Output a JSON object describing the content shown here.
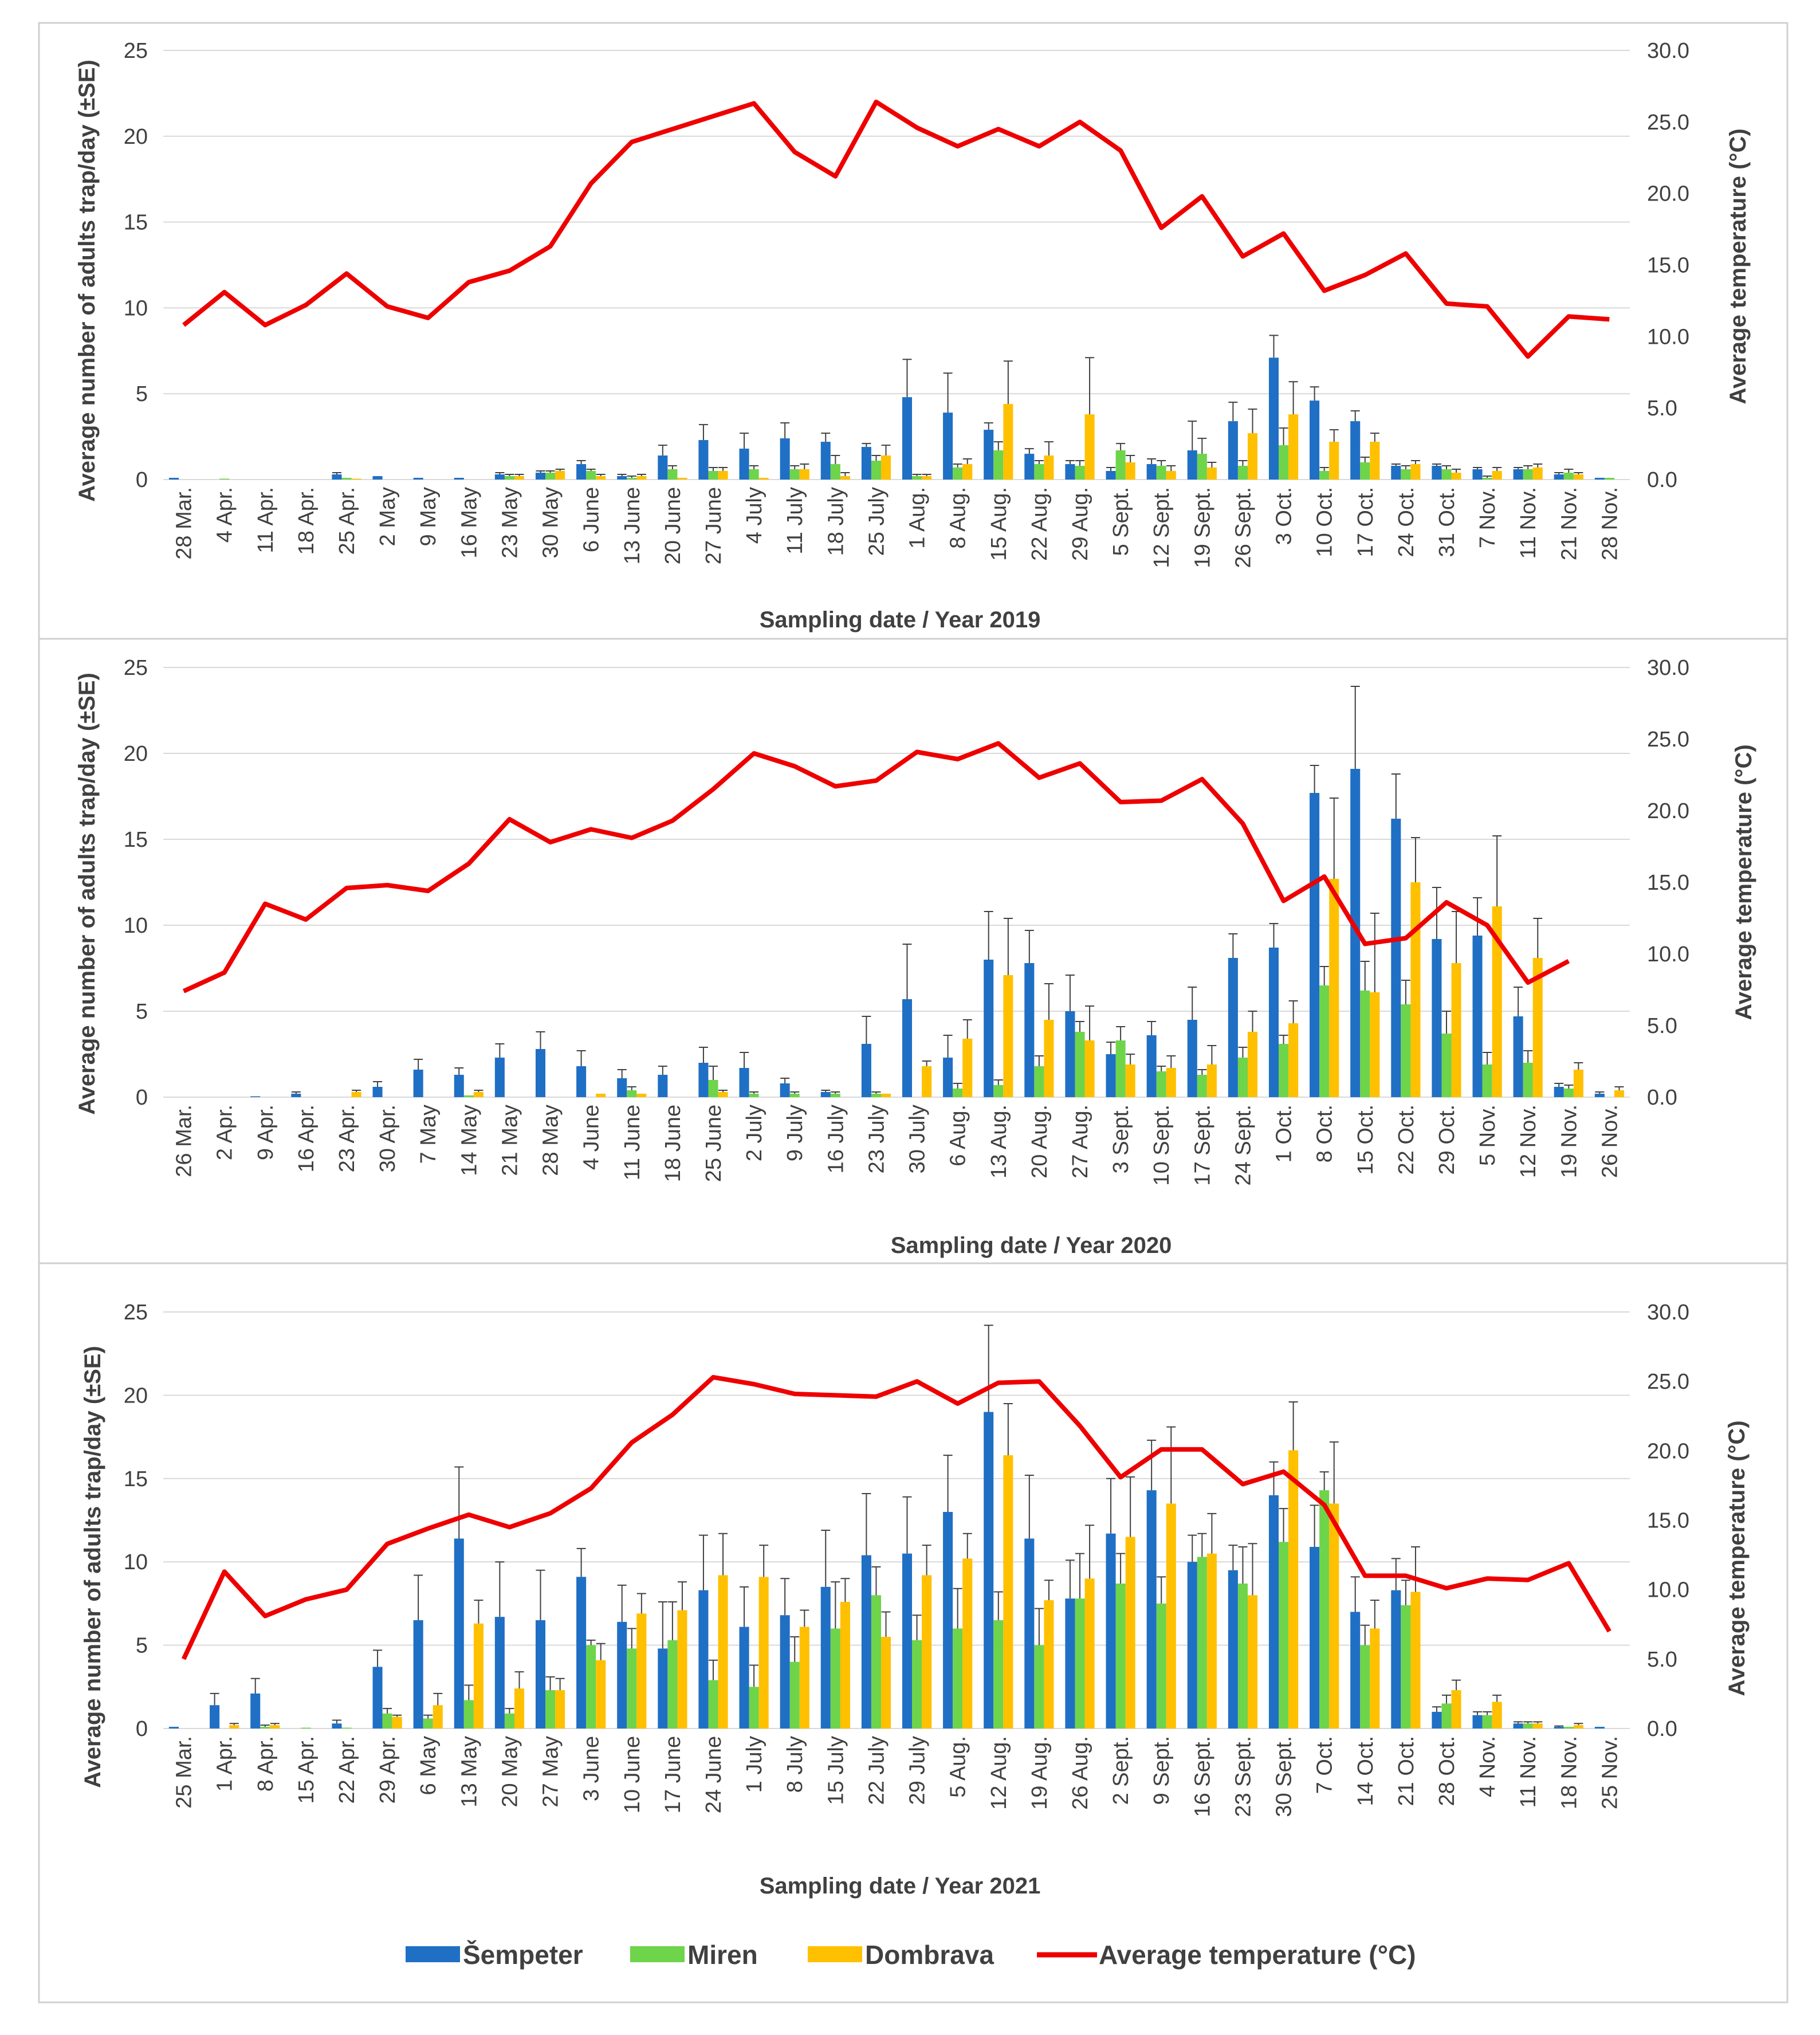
{
  "legend": {
    "items": [
      {
        "name": "Šempeter",
        "color": "#1f6fc5",
        "kind": "bar"
      },
      {
        "name": "Miren",
        "color": "#6ed44a",
        "kind": "bar"
      },
      {
        "name": "Dombrava",
        "color": "#ffc000",
        "kind": "bar"
      },
      {
        "name": "Average temperature (°C)",
        "color": "#ee0000",
        "kind": "line"
      }
    ]
  },
  "chart_data": [
    {
      "type": "bar",
      "title": "",
      "xlabel": "Sampling date / Year 2019",
      "ylabel": "Average number of adults  trap/day (±SE)",
      "y2label": "Average  temperature (°C)",
      "ylim": [
        0,
        25
      ],
      "y2lim": [
        0,
        30
      ],
      "yticks": [
        "0",
        "5",
        "10",
        "15",
        "20",
        "25"
      ],
      "y2ticks": [
        "0.0",
        "5.0",
        "10.0",
        "15.0",
        "20.0",
        "25.0",
        "30.0"
      ],
      "categories": [
        "28 Mar.",
        "4 Apr.",
        "11 Apr.",
        "18 Apr.",
        "25 Apr.",
        "2 May",
        "9 May",
        "16 May",
        "23 May",
        "30 May",
        "6 June",
        "13 June",
        "20 June",
        "27 June",
        "4 July",
        "11 July",
        "18 July",
        "25 July",
        "1 Aug.",
        "8 Aug.",
        "15 Aug.",
        "22 Aug.",
        "29 Aug.",
        "5 Sept.",
        "12 Sept.",
        "19 Sept.",
        "26 Sept.",
        "3 Oct.",
        "10 Oct.",
        "17 Oct.",
        "24 Oct.",
        "31 Oct.",
        "7 Nov.",
        "11 Nov.",
        "21 Nov.",
        "28 Nov."
      ],
      "series": [
        {
          "name": "Šempeter",
          "values": [
            0.1,
            0,
            0,
            0,
            0.3,
            0.2,
            0.1,
            0.1,
            0.3,
            0.4,
            0.9,
            0.2,
            1.4,
            2.3,
            1.8,
            2.4,
            2.2,
            1.9,
            4.8,
            3.9,
            2.9,
            1.5,
            0.9,
            0.5,
            0.9,
            1.7,
            3.4,
            7.1,
            4.6,
            3.4,
            0.8,
            0.8,
            0.6,
            0.6,
            0.3,
            0.1
          ]
        },
        {
          "name": "Miren",
          "values": [
            0,
            0.05,
            0,
            0,
            0.1,
            0,
            0,
            0,
            0.2,
            0.4,
            0.5,
            0.1,
            0.6,
            0.5,
            0.6,
            0.6,
            0.9,
            1.1,
            0.2,
            0.7,
            1.7,
            0.9,
            0.8,
            1.7,
            0.8,
            1.5,
            0.8,
            2.0,
            0.5,
            1.0,
            0.6,
            0.6,
            0.1,
            0.6,
            0.4,
            0.1
          ]
        },
        {
          "name": "Dombrava",
          "values": [
            0,
            0,
            0,
            0,
            0.05,
            0,
            0,
            0,
            0.2,
            0.5,
            0.2,
            0.2,
            0.1,
            0.5,
            0.1,
            0.6,
            0.2,
            1.4,
            0.2,
            0.9,
            4.4,
            1.4,
            3.8,
            1.0,
            0.5,
            0.7,
            2.7,
            3.8,
            2.2,
            2.2,
            0.9,
            0.4,
            0.5,
            0.7,
            0.3,
            0
          ]
        }
      ],
      "errors": [
        [
          0,
          0,
          0,
          0,
          0.1,
          0,
          0,
          0,
          0.1,
          0.1,
          0.2,
          0.1,
          0.6,
          0.9,
          0.9,
          0.9,
          0.5,
          0.2,
          2.2,
          2.3,
          0.4,
          0.3,
          0.2,
          0.2,
          0.3,
          1.7,
          1.1,
          1.3,
          0.8,
          0.6,
          0.1,
          0.1,
          0.1,
          0.1,
          0.1,
          0
        ],
        [
          0,
          0,
          0,
          0,
          0,
          0,
          0,
          0,
          0.1,
          0.1,
          0.1,
          0.1,
          0.2,
          0.2,
          0.2,
          0.2,
          0.5,
          0.3,
          0.1,
          0.2,
          0.5,
          0.2,
          0.3,
          0.4,
          0.3,
          0.9,
          0.3,
          1.0,
          0.2,
          0.3,
          0.2,
          0.2,
          0.1,
          0.2,
          0.2,
          0
        ],
        [
          0,
          0,
          0,
          0,
          0,
          0,
          0,
          0,
          0.1,
          0.1,
          0.1,
          0.1,
          0,
          0.2,
          0,
          0.3,
          0.2,
          0.6,
          0.1,
          0.3,
          2.5,
          0.8,
          3.3,
          0.4,
          0.3,
          0.3,
          1.4,
          1.9,
          0.7,
          0.5,
          0.2,
          0.2,
          0.2,
          0.2,
          0.1,
          0
        ]
      ],
      "temperature": [
        10.8,
        13.1,
        10.8,
        12.2,
        14.4,
        12.1,
        11.3,
        13.8,
        14.6,
        16.3,
        20.7,
        23.6,
        24.5,
        25.4,
        26.3,
        22.9,
        21.2,
        26.4,
        24.6,
        23.3,
        24.5,
        23.3,
        25.0,
        23.0,
        17.6,
        19.8,
        15.6,
        17.2,
        13.2,
        14.3,
        15.8,
        12.3,
        12.1,
        8.6,
        11.4,
        11.2
      ]
    },
    {
      "type": "bar",
      "title": "",
      "xlabel": "Sampling date / Year 2020",
      "ylabel": "Average number of adults  trap/day (±SE)",
      "y2label": "Average temperature (°C)",
      "ylim": [
        0,
        25
      ],
      "y2lim": [
        0,
        30
      ],
      "yticks": [
        "0",
        "5",
        "10",
        "15",
        "20",
        "25"
      ],
      "y2ticks": [
        "0.0",
        "5.0",
        "10.0",
        "15.0",
        "20.0",
        "25.0",
        "30.0"
      ],
      "categories": [
        "26 Mar.",
        "2 Apr.",
        "9 Apr.",
        "16 Apr.",
        "23 Apr.",
        "30 Apr.",
        "7 May",
        "14 May",
        "21 May",
        "28 May",
        "4 June",
        "11 June",
        "18 June",
        "25 June",
        "2 July",
        "9 July",
        "16 July",
        "23 July",
        "30 July",
        "6 Aug.",
        "13 Aug.",
        "20 Aug.",
        "27 Aug.",
        "3 Sept.",
        "10 Sept.",
        "17 Sept.",
        "24 Sept.",
        "1 Oct.",
        "8 Oct.",
        "15 Oct.",
        "22 Oct.",
        "29 Oct.",
        "5 Nov.",
        "12 Nov.",
        "19 Nov.",
        "26 Nov."
      ],
      "series": [
        {
          "name": "Šempeter",
          "values": [
            0,
            0,
            0.05,
            0.2,
            0,
            0.6,
            1.6,
            1.3,
            2.3,
            2.8,
            1.8,
            1.1,
            1.3,
            2.0,
            1.7,
            0.8,
            0.3,
            3.1,
            5.7,
            2.3,
            8.0,
            7.8,
            5.0,
            2.5,
            3.6,
            4.5,
            8.1,
            8.7,
            17.7,
            19.1,
            16.2,
            9.2,
            9.4,
            4.7,
            0.6,
            0.2
          ]
        },
        {
          "name": "Miren",
          "values": [
            0,
            0,
            0,
            0,
            0,
            0,
            0,
            0.1,
            0,
            0,
            0,
            0.4,
            0,
            1.0,
            0.2,
            0.2,
            0.2,
            0.2,
            0,
            0.5,
            0.7,
            1.8,
            3.8,
            3.3,
            1.5,
            1.3,
            2.3,
            3.1,
            6.5,
            6.2,
            5.4,
            3.7,
            1.9,
            2.0,
            0.5,
            0
          ]
        },
        {
          "name": "Dombrava",
          "values": [
            0,
            0,
            0,
            0,
            0.3,
            0,
            0,
            0.3,
            0,
            0,
            0.2,
            0.2,
            0,
            0.3,
            0,
            0,
            0,
            0.2,
            1.8,
            3.4,
            7.1,
            4.5,
            3.3,
            1.9,
            1.7,
            1.9,
            3.8,
            4.3,
            12.7,
            6.1,
            12.5,
            7.8,
            11.1,
            8.1,
            1.6,
            0.4
          ]
        }
      ],
      "errors": [
        [
          0,
          0,
          0,
          0.1,
          0,
          0.3,
          0.6,
          0.4,
          0.8,
          1.0,
          0.9,
          0.5,
          0.5,
          0.9,
          0.9,
          0.3,
          0.1,
          1.6,
          3.2,
          1.3,
          2.8,
          1.9,
          2.1,
          0.7,
          0.8,
          1.9,
          1.4,
          1.4,
          1.6,
          4.8,
          2.6,
          3.0,
          2.2,
          1.7,
          0.2,
          0.1
        ],
        [
          0,
          0,
          0,
          0,
          0,
          0,
          0,
          0,
          0,
          0,
          0,
          0.2,
          0,
          0.8,
          0.1,
          0.1,
          0.1,
          0.1,
          0,
          0.3,
          0.3,
          0.6,
          0.6,
          0.8,
          0.3,
          0.3,
          0.6,
          0.5,
          1.1,
          1.7,
          1.4,
          1.3,
          0.7,
          0.7,
          0.2,
          0
        ],
        [
          0,
          0,
          0,
          0,
          0.1,
          0,
          0,
          0.1,
          0,
          0,
          0,
          0,
          0,
          0.1,
          0,
          0,
          0,
          0,
          0.3,
          1.1,
          3.3,
          2.1,
          2.0,
          0.6,
          0.7,
          1.1,
          1.2,
          1.3,
          4.7,
          4.6,
          2.6,
          3.0,
          4.1,
          2.3,
          0.4,
          0.2
        ]
      ],
      "temperature": [
        7.4,
        8.7,
        13.5,
        12.4,
        14.6,
        14.8,
        14.4,
        16.3,
        19.4,
        17.8,
        18.7,
        18.1,
        19.3,
        21.5,
        24.0,
        23.1,
        21.7,
        22.1,
        24.1,
        23.6,
        24.7,
        22.3,
        23.3,
        20.6,
        20.7,
        22.2,
        19.1,
        13.7,
        15.4,
        10.7,
        11.1,
        13.6,
        12.0,
        8.0,
        9.5,
        null
      ]
    },
    {
      "type": "bar",
      "title": "",
      "xlabel": "Sampling date / Year 2021",
      "ylabel": "Average number of adults  trap/day (±SE)",
      "y2label": "Average temperature (°C)",
      "ylim": [
        0,
        25
      ],
      "y2lim": [
        0,
        30
      ],
      "yticks": [
        "0",
        "5",
        "10",
        "15",
        "20",
        "25"
      ],
      "y2ticks": [
        "0.0",
        "5.0",
        "10.0",
        "15.0",
        "20.0",
        "25.0",
        "30.0"
      ],
      "categories": [
        "25 Mar.",
        "1 Apr.",
        "8 Apr.",
        "15 Apr.",
        "22 Apr.",
        "29 Apr.",
        "6 May",
        "13 May",
        "20 May",
        "27 May",
        "3 June",
        "10 June",
        "17 June",
        "24 June",
        "1 July",
        "8 July",
        "15 July",
        "22 July",
        "29 July",
        "5 Aug.",
        "12 Aug.",
        "19 Aug.",
        "26 Aug.",
        "2 Sept.",
        "9 Sept.",
        "16 Sept.",
        "23 Sept.",
        "30 Sept.",
        "7 Oct.",
        "14 Oct.",
        "21 Oct.",
        "28 Oct.",
        "4 Nov.",
        "11 Nov.",
        "18 Nov.",
        "25 Nov."
      ],
      "series": [
        {
          "name": "Šempeter",
          "values": [
            0.1,
            1.4,
            2.1,
            0,
            0.3,
            3.7,
            6.5,
            11.4,
            6.7,
            6.5,
            9.1,
            6.4,
            4.8,
            8.3,
            6.1,
            6.8,
            8.5,
            10.4,
            10.5,
            13.0,
            19.0,
            11.4,
            7.8,
            11.7,
            14.3,
            10.0,
            9.5,
            14.0,
            10.9,
            7.0,
            8.3,
            1.0,
            0.8,
            0.3,
            0.1,
            0.1
          ]
        },
        {
          "name": "Miren",
          "values": [
            0,
            0,
            0.1,
            0.05,
            0.05,
            0.9,
            0.6,
            1.7,
            0.9,
            2.3,
            5.0,
            4.8,
            5.3,
            2.9,
            2.5,
            4.0,
            6.0,
            8.0,
            5.3,
            6.0,
            6.5,
            5.0,
            7.8,
            8.7,
            7.5,
            10.3,
            8.7,
            11.2,
            14.3,
            5.0,
            7.4,
            1.5,
            0.8,
            0.3,
            0.1,
            0
          ]
        },
        {
          "name": "Dombrava",
          "values": [
            0,
            0.2,
            0.2,
            0,
            0,
            0.7,
            1.4,
            6.3,
            2.4,
            2.3,
            4.1,
            6.9,
            7.1,
            9.2,
            9.1,
            6.1,
            7.6,
            5.5,
            9.2,
            10.2,
            16.4,
            7.7,
            9.0,
            11.5,
            13.5,
            10.5,
            8.0,
            16.7,
            13.5,
            6.0,
            8.2,
            2.3,
            1.6,
            0.3,
            0.2,
            0
          ]
        }
      ],
      "errors": [
        [
          0,
          0.7,
          0.9,
          0,
          0.2,
          1.0,
          2.7,
          4.3,
          3.3,
          3.0,
          1.7,
          2.2,
          2.8,
          3.3,
          2.4,
          2.2,
          3.4,
          3.7,
          3.4,
          3.4,
          5.2,
          3.8,
          2.3,
          3.3,
          3.0,
          1.6,
          1.5,
          2.0,
          2.5,
          2.1,
          1.9,
          0.3,
          0.2,
          0.1,
          0.05,
          0
        ],
        [
          0,
          0,
          0.1,
          0,
          0,
          0.3,
          0.2,
          0.9,
          0.3,
          0.8,
          0.3,
          1.2,
          2.3,
          1.2,
          1.3,
          1.5,
          2.8,
          1.7,
          1.5,
          2.4,
          1.7,
          2.2,
          2.7,
          1.8,
          1.6,
          1.4,
          2.2,
          2.0,
          1.1,
          1.2,
          1.5,
          0.5,
          0.2,
          0.1,
          0,
          0
        ],
        [
          0,
          0.1,
          0.1,
          0,
          0,
          0.1,
          0.7,
          1.4,
          1.0,
          0.7,
          1.0,
          1.2,
          1.7,
          2.5,
          1.9,
          1.0,
          1.4,
          1.5,
          1.8,
          1.5,
          3.1,
          1.2,
          3.2,
          3.6,
          4.6,
          2.4,
          3.1,
          2.9,
          3.7,
          1.7,
          2.7,
          0.6,
          0.4,
          0.1,
          0.1,
          0
        ]
      ],
      "temperature": [
        5.0,
        11.3,
        8.1,
        9.3,
        10.0,
        13.3,
        14.4,
        15.4,
        14.5,
        15.5,
        17.3,
        20.6,
        22.6,
        25.3,
        24.8,
        24.1,
        24.0,
        23.9,
        25.0,
        23.4,
        24.9,
        25.0,
        21.8,
        18.1,
        20.1,
        20.1,
        17.6,
        18.5,
        16.1,
        11.0,
        11.0,
        10.1,
        10.8,
        10.7,
        11.9,
        7.0
      ]
    }
  ]
}
